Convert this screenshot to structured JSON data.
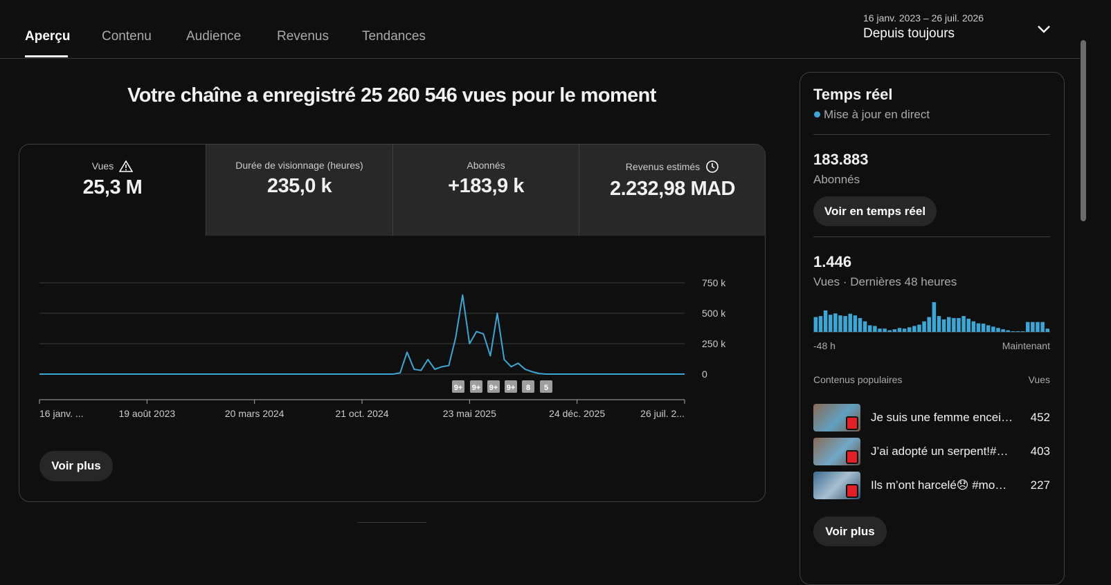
{
  "tabs": [
    "Aperçu",
    "Contenu",
    "Audience",
    "Revenus",
    "Tendances"
  ],
  "date_range": {
    "dates": "16 janv. 2023 – 26 juil. 2026",
    "label": "Depuis toujours"
  },
  "headline": "Votre chaîne a enregistré 25 260 546 vues pour le moment",
  "metrics": [
    {
      "label": "Vues",
      "value": "25,3 M"
    },
    {
      "label": "Durée de visionnage (heures)",
      "value": "235,0 k"
    },
    {
      "label": "Abonnés",
      "value": "+183,9 k"
    },
    {
      "label": "Revenus estimés",
      "value": "2.232,98 MAD"
    }
  ],
  "chart": {
    "type": "line",
    "color": "#3ea6d4",
    "values": [
      0,
      0,
      0,
      0,
      0,
      0,
      0,
      0,
      0,
      0,
      0,
      0,
      0,
      0,
      0,
      0,
      0,
      0,
      0,
      0,
      0,
      0,
      0,
      0,
      0,
      0,
      0,
      0,
      0,
      0,
      0,
      0,
      0,
      0,
      0,
      0,
      0,
      0,
      0,
      0,
      0,
      0,
      0,
      0,
      0,
      0,
      0,
      0,
      0,
      0,
      0,
      0,
      10000,
      180000,
      40000,
      30000,
      120000,
      40000,
      60000,
      70000,
      300000,
      650000,
      250000,
      350000,
      330000,
      150000,
      500000,
      120000,
      60000,
      90000,
      40000,
      20000,
      5000,
      0,
      0,
      0,
      0,
      0,
      0,
      0,
      0,
      0,
      0,
      0,
      0,
      0,
      0,
      0,
      0,
      0,
      0,
      0,
      0,
      0
    ],
    "ylim": [
      0,
      750000
    ],
    "yticks": [
      0,
      {
        "value": 250000,
        "label": "250 k"
      },
      {
        "value": 500000,
        "label": "500 k"
      },
      {
        "value": 750000,
        "label": "750 k"
      }
    ],
    "xticks": [
      "16 janv. ...",
      "19 août 2023",
      "20 mars 2024",
      "21 oct. 2024",
      "23 mai 2025",
      "24 déc. 2025",
      "26 juil. 2..."
    ],
    "annotations": [
      "9+",
      "9+",
      "9+",
      "9+",
      "8",
      "5"
    ],
    "grid": true
  },
  "more_button": "Voir plus",
  "realtime": {
    "title": "Temps réel",
    "live": "Mise à jour en direct",
    "subscribers": "183.883",
    "subscribers_label": "Abonnés",
    "button": "Voir en temps réel",
    "views": "1.446",
    "views_label": "Vues · Dernières 48 heures",
    "bars": [
      45,
      48,
      65,
      52,
      56,
      50,
      48,
      55,
      50,
      42,
      32,
      20,
      18,
      10,
      10,
      5,
      8,
      12,
      10,
      14,
      18,
      22,
      32,
      45,
      90,
      48,
      38,
      45,
      42,
      42,
      48,
      40,
      32,
      26,
      25,
      20,
      16,
      12,
      8,
      5,
      2,
      2,
      2,
      30,
      30,
      30,
      30,
      10
    ],
    "axis_start": "-48 h",
    "axis_end": "Maintenant",
    "top_header": "Contenus populaires",
    "top_column": "Vues",
    "items": [
      {
        "title": "Je suis une femme encei…",
        "views": 452
      },
      {
        "title": "J’ai adopté un serpent!#…",
        "views": 403
      },
      {
        "title": "Ils m’ont harcelé😞 #mo…",
        "views": 227
      }
    ],
    "more_button": "Voir plus"
  }
}
